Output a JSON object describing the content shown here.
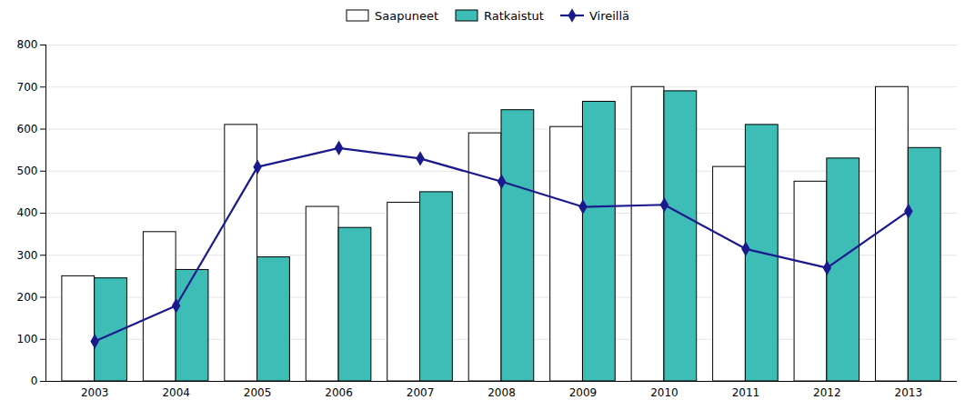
{
  "chart_data": {
    "type": "bar",
    "categories": [
      "2003",
      "2004",
      "2005",
      "2006",
      "2007",
      "2008",
      "2009",
      "2010",
      "2011",
      "2012",
      "2013"
    ],
    "series": [
      {
        "name": "Saapuneet",
        "color": "#ffffff",
        "values": [
          250,
          355,
          610,
          415,
          425,
          590,
          605,
          700,
          510,
          475,
          700
        ]
      },
      {
        "name": "Ratkaistut",
        "color": "#3dbdb5",
        "values": [
          245,
          265,
          295,
          365,
          450,
          645,
          665,
          690,
          610,
          530,
          555
        ]
      },
      {
        "name": "Vireillä",
        "type": "line",
        "color": "#1a1a8c",
        "marker": "diamond",
        "values": [
          95,
          180,
          510,
          555,
          530,
          475,
          415,
          420,
          315,
          270,
          405
        ]
      }
    ],
    "ylim": [
      0,
      800
    ],
    "yticks": [
      0,
      100,
      200,
      300,
      400,
      500,
      600,
      700,
      800
    ],
    "grid": true,
    "legend": "top"
  }
}
